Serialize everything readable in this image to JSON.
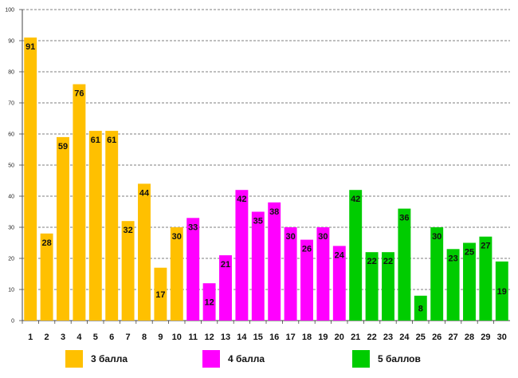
{
  "chart_data": {
    "type": "bar",
    "title": "",
    "xlabel": "",
    "ylabel": "",
    "ylim": [
      0,
      100
    ],
    "yticks": [
      "0",
      "10",
      "20",
      "30",
      "40",
      "50",
      "60",
      "70",
      "80",
      "90",
      "100"
    ],
    "grid": true,
    "categories": [
      "1",
      "2",
      "3",
      "4",
      "5",
      "6",
      "7",
      "8",
      "9",
      "10",
      "11",
      "12",
      "13",
      "14",
      "15",
      "16",
      "17",
      "18",
      "19",
      "20",
      "21",
      "22",
      "23",
      "24",
      "25",
      "26",
      "27",
      "28",
      "29",
      "30"
    ],
    "values": [
      91,
      28,
      59,
      76,
      61,
      61,
      32,
      44,
      17,
      30,
      33,
      12,
      21,
      42,
      35,
      38,
      30,
      26,
      30,
      24,
      42,
      22,
      22,
      36,
      8,
      30,
      23,
      25,
      27,
      19
    ],
    "series": [
      {
        "name": "3 балла",
        "color": "#FFC000",
        "range": [
          1,
          10
        ]
      },
      {
        "name": "4 балла",
        "color": "#FF00FF",
        "range": [
          11,
          20
        ]
      },
      {
        "name": "5 баллов",
        "color": "#00CC00",
        "range": [
          21,
          30
        ]
      }
    ]
  }
}
